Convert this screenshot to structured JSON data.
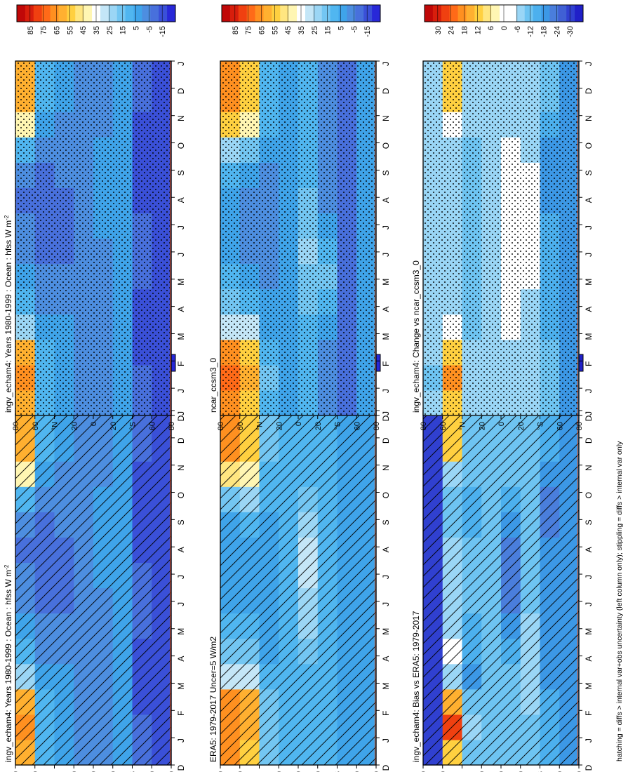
{
  "figure": {
    "footnote": "hatching = diffs > internal var+obs uncertainty (left column only); stippling = diffs > internal var only"
  },
  "x_axis_labels": [
    "D",
    "J",
    "F",
    "M",
    "A",
    "M",
    "J",
    "J",
    "A",
    "S",
    "O",
    "N",
    "D",
    "J"
  ],
  "lat_axis_labels": [
    "80",
    "60",
    "°N",
    "20",
    "0",
    "20",
    "°S",
    "60",
    "80"
  ],
  "colors": {
    "abs_scale": [
      "#2828d8",
      "#3a50d8",
      "#4870dc",
      "#4d8ee0",
      "#3fa4ea",
      "#50b6f0",
      "#73c6f2",
      "#9bd6f5",
      "#c4e6f7",
      "#ffffff",
      "#fff6b3",
      "#ffe680",
      "#ffd040",
      "#ffb030",
      "#ff9020",
      "#ff6a18",
      "#f04010",
      "#d81e0c",
      "#c00808"
    ],
    "diff_scale": [
      "#2020c8",
      "#3040d0",
      "#4060d4",
      "#4a7edc",
      "#3c98e6",
      "#4cb0ee",
      "#6ec4f2",
      "#9ad6f6",
      "#ffffff",
      "#ffffff",
      "#fff6b3",
      "#ffe680",
      "#ffd040",
      "#ffb030",
      "#ff9020",
      "#ff6a18",
      "#f04010",
      "#d81e0c",
      "#c00808"
    ],
    "bad_lat": "#e05018"
  },
  "chart_data": [
    {
      "id": "model_left",
      "type": "heatmap",
      "title": "ingv_echam4: Years 1980-1999 : Ocean : hfss W m",
      "title_sup": "-2",
      "months": [
        "D",
        "J",
        "F",
        "M",
        "A",
        "M",
        "J",
        "J",
        "A",
        "S",
        "O",
        "N",
        "D",
        "J"
      ],
      "lat_ticks": [
        "80",
        "60",
        "°N",
        "20",
        "0",
        "20",
        "°S",
        "60",
        "80"
      ],
      "colorbar": {
        "labels": [
          "85",
          "75",
          "65",
          "55",
          "45",
          "35",
          "25",
          "15",
          "5",
          "-5",
          "-15"
        ],
        "vmin": -20,
        "vmax": 90
      },
      "overlay": "hatching",
      "values": [
        [
          58,
          62,
          61,
          22,
          14,
          5,
          0,
          -2,
          -3,
          -2,
          12,
          40,
          60,
          58
        ],
        [
          12,
          14,
          11,
          4,
          1,
          -2,
          -5,
          -6,
          -5,
          -4,
          2,
          8,
          12,
          12
        ],
        [
          5,
          6,
          6,
          5,
          3,
          0,
          -3,
          -4,
          -4,
          -2,
          1,
          3,
          5,
          5
        ],
        [
          0,
          1,
          1,
          0,
          0,
          0,
          0,
          0,
          0,
          0,
          0,
          0,
          0,
          0
        ],
        [
          2,
          2,
          3,
          3,
          3,
          2,
          3,
          4,
          5,
          5,
          4,
          3,
          2,
          2
        ],
        [
          4,
          5,
          7,
          8,
          8,
          7,
          6,
          5,
          5,
          6,
          6,
          5,
          4,
          4
        ],
        [
          -8,
          -8,
          -10,
          -10,
          -9,
          -8,
          -8,
          -8,
          -10,
          -12,
          -12,
          -10,
          -8,
          -8
        ],
        [
          -12,
          -12,
          -13,
          -12,
          -11,
          -10,
          -10,
          -11,
          -13,
          -14,
          -13,
          -12,
          -12,
          -12
        ]
      ]
    },
    {
      "id": "model_right",
      "type": "heatmap",
      "title": "ingv_echam4: Years 1980-1999 : Ocean : hfss W m",
      "title_sup": "-2",
      "months": [
        "D",
        "J",
        "F",
        "M",
        "A",
        "M",
        "J",
        "J",
        "A",
        "S",
        "O",
        "N",
        "D",
        "J"
      ],
      "lat_ticks": [
        "80",
        "60",
        "°N",
        "20",
        "0",
        "20",
        "°S",
        "60",
        "80"
      ],
      "colorbar": {
        "labels": [
          "85",
          "75",
          "65",
          "55",
          "45",
          "35",
          "25",
          "15",
          "5",
          "-5",
          "-15"
        ],
        "vmin": -20,
        "vmax": 90
      },
      "overlay": "stippling",
      "values": [
        [
          58,
          62,
          61,
          22,
          14,
          5,
          0,
          -2,
          -3,
          -2,
          12,
          40,
          60,
          58
        ],
        [
          12,
          14,
          11,
          4,
          1,
          -2,
          -5,
          -6,
          -5,
          -4,
          2,
          8,
          12,
          12
        ],
        [
          5,
          6,
          6,
          5,
          3,
          0,
          -3,
          -4,
          -4,
          -2,
          1,
          3,
          5,
          5
        ],
        [
          0,
          1,
          1,
          0,
          0,
          0,
          0,
          0,
          0,
          0,
          0,
          0,
          0,
          0
        ],
        [
          2,
          2,
          3,
          3,
          3,
          2,
          3,
          4,
          5,
          5,
          4,
          3,
          2,
          2
        ],
        [
          4,
          5,
          7,
          8,
          8,
          7,
          6,
          5,
          5,
          6,
          6,
          5,
          4,
          4
        ],
        [
          -8,
          -8,
          -10,
          -10,
          -9,
          -8,
          -8,
          -8,
          -10,
          -12,
          -12,
          -10,
          -8,
          -8
        ],
        [
          -12,
          -12,
          -13,
          -12,
          -11,
          -10,
          -10,
          -11,
          -13,
          -14,
          -13,
          -12,
          -12,
          -12
        ]
      ]
    },
    {
      "id": "obs_left",
      "type": "heatmap",
      "title": "ERA5: 1979-2017 Uncer=5 W/m2",
      "title_sup": "",
      "months": [
        "D",
        "J",
        "F",
        "M",
        "A",
        "M",
        "J",
        "J",
        "A",
        "S",
        "O",
        "N",
        "D",
        "J"
      ],
      "lat_ticks": [
        "80",
        "60",
        "°N",
        "20",
        "0",
        "20",
        "°S",
        "60",
        "80"
      ],
      "colorbar": {
        "labels": [
          "85",
          "75",
          "65",
          "55",
          "45",
          "35",
          "25",
          "15",
          "5",
          "-5",
          "-15"
        ],
        "vmin": -20,
        "vmax": 90
      },
      "overlay": "hatching",
      "values": [
        [
          62,
          66,
          63,
          28,
          18,
          10,
          6,
          5,
          6,
          8,
          20,
          48,
          62,
          62
        ],
        [
          55,
          60,
          56,
          30,
          18,
          10,
          6,
          5,
          6,
          10,
          26,
          42,
          55,
          55
        ],
        [
          18,
          20,
          17,
          10,
          8,
          6,
          5,
          5,
          5,
          6,
          10,
          14,
          18,
          18
        ],
        [
          10,
          11,
          10,
          10,
          10,
          10,
          10,
          10,
          10,
          10,
          10,
          10,
          10,
          10
        ],
        [
          12,
          12,
          12,
          14,
          18,
          22,
          26,
          28,
          30,
          26,
          18,
          14,
          12,
          12
        ],
        [
          10,
          10,
          11,
          12,
          12,
          13,
          14,
          14,
          14,
          13,
          12,
          11,
          10,
          10
        ],
        [
          5,
          5,
          4,
          4,
          4,
          4,
          4,
          4,
          4,
          4,
          4,
          5,
          5,
          5
        ],
        [
          4,
          4,
          4,
          4,
          4,
          4,
          4,
          4,
          4,
          4,
          4,
          4,
          4,
          4
        ]
      ]
    },
    {
      "id": "ref_right",
      "type": "heatmap",
      "title": "ncar_ccsm3_0",
      "title_sup": "",
      "months": [
        "D",
        "J",
        "F",
        "M",
        "A",
        "M",
        "J",
        "J",
        "A",
        "S",
        "O",
        "N",
        "D",
        "J"
      ],
      "lat_ticks": [
        "80",
        "60",
        "°N",
        "20",
        "0",
        "20",
        "°S",
        "60",
        "80"
      ],
      "colorbar": {
        "labels": [
          "85",
          "75",
          "65",
          "55",
          "45",
          "35",
          "25",
          "15",
          "5",
          "-5",
          "-15"
        ],
        "vmin": -20,
        "vmax": 90
      },
      "overlay": "stippling",
      "values": [
        [
          64,
          68,
          64,
          30,
          18,
          10,
          6,
          5,
          6,
          10,
          22,
          50,
          64,
          64
        ],
        [
          50,
          56,
          50,
          28,
          14,
          6,
          2,
          0,
          2,
          6,
          18,
          38,
          50,
          50
        ],
        [
          14,
          15,
          12,
          8,
          5,
          3,
          1,
          1,
          1,
          2,
          6,
          10,
          14,
          14
        ],
        [
          6,
          7,
          7,
          7,
          7,
          7,
          7,
          7,
          7,
          7,
          7,
          7,
          6,
          6
        ],
        [
          10,
          10,
          11,
          14,
          18,
          20,
          22,
          20,
          16,
          12,
          10,
          10,
          10,
          10
        ],
        [
          0,
          0,
          2,
          6,
          12,
          18,
          10,
          4,
          2,
          2,
          1,
          0,
          0,
          0
        ],
        [
          -5,
          -5,
          -6,
          -6,
          -5,
          -4,
          -4,
          -4,
          -5,
          -6,
          -6,
          -5,
          -5,
          -5
        ],
        [
          5,
          5,
          5,
          5,
          5,
          5,
          5,
          5,
          5,
          5,
          5,
          5,
          5,
          5
        ]
      ]
    },
    {
      "id": "bias_left",
      "type": "heatmap",
      "title": "ingv_echam4: Bias vs ERA5: 1979-2017",
      "title_sup": "",
      "months": [
        "D",
        "J",
        "F",
        "M",
        "A",
        "M",
        "J",
        "J",
        "A",
        "S",
        "O",
        "N",
        "D",
        "J"
      ],
      "lat_ticks": [
        "80",
        "60",
        "°N",
        "20",
        "0",
        "20",
        "°S",
        "60",
        "80"
      ],
      "colorbar": {
        "labels": [
          "30",
          "24",
          "18",
          "12",
          "6",
          "0",
          "-6",
          "-12",
          "-18",
          "-24",
          "-30"
        ],
        "vmin": -33,
        "vmax": 33
      },
      "overlay": "hatching",
      "values": [
        [
          -28,
          -28,
          -28,
          -28,
          -28,
          -28,
          -28,
          -28,
          -28,
          -28,
          -28,
          -28,
          -28,
          -28
        ],
        [
          10,
          24,
          14,
          -8,
          -4,
          -6,
          -6,
          -7,
          -8,
          -12,
          -10,
          -8,
          10,
          10
        ],
        [
          -12,
          -8,
          -10,
          -16,
          -15,
          -13,
          -12,
          -12,
          -12,
          -13,
          -14,
          -12,
          -12,
          -12
        ],
        [
          -12,
          -12,
          -12,
          -12,
          -12,
          -12,
          -12,
          -12,
          -12,
          -12,
          -12,
          -12,
          -12,
          -12
        ],
        [
          -12,
          -12,
          -12,
          -12,
          -14,
          -18,
          -20,
          -22,
          -22,
          -18,
          -14,
          -12,
          -12,
          -12
        ],
        [
          -10,
          -10,
          -8,
          -8,
          -8,
          -8,
          -10,
          -10,
          -12,
          -12,
          -12,
          -10,
          -10,
          -10
        ],
        [
          -14,
          -14,
          -14,
          -16,
          -16,
          -16,
          -16,
          -16,
          -18,
          -20,
          -20,
          -18,
          -14,
          -14
        ],
        [
          -18,
          -18,
          -18,
          -18,
          -18,
          -18,
          -18,
          -18,
          -18,
          -18,
          -18,
          -18,
          -18,
          -18
        ]
      ]
    },
    {
      "id": "change_right",
      "type": "heatmap",
      "title": "ingv_echam4: Change vs ncar_ccsm3_0",
      "title_sup": "",
      "months": [
        "D",
        "J",
        "F",
        "M",
        "A",
        "M",
        "J",
        "J",
        "A",
        "S",
        "O",
        "N",
        "D",
        "J"
      ],
      "lat_ticks": [
        "80",
        "60",
        "°N",
        "20",
        "0",
        "20",
        "°S",
        "60",
        "80"
      ],
      "colorbar": {
        "labels": [
          "30",
          "24",
          "18",
          "12",
          "6",
          "0",
          "-6",
          "-12",
          "-18",
          "-24",
          "-30"
        ],
        "vmin": -33,
        "vmax": 33
      },
      "overlay": "stippling",
      "values": [
        [
          -8,
          -10,
          -8,
          -6,
          -6,
          -6,
          -6,
          -6,
          -6,
          -8,
          -8,
          -8,
          -8,
          -8
        ],
        [
          12,
          18,
          12,
          -4,
          -6,
          -8,
          -8,
          -8,
          -8,
          -8,
          -6,
          -2,
          12,
          12
        ],
        [
          -8,
          -6,
          -8,
          -10,
          -10,
          -10,
          -10,
          -10,
          -10,
          -10,
          -10,
          -8,
          -8,
          -8
        ],
        [
          -6,
          -6,
          -6,
          -6,
          -6,
          -6,
          -6,
          -6,
          -6,
          -6,
          -6,
          -6,
          -6,
          -6
        ],
        [
          -6,
          -6,
          -6,
          -4,
          -2,
          0,
          0,
          0,
          0,
          -2,
          -4,
          -6,
          -6,
          -6
        ],
        [
          -6,
          -6,
          -6,
          -6,
          -6,
          -4,
          -4,
          -4,
          -4,
          -4,
          -6,
          -6,
          -6,
          -6
        ],
        [
          -12,
          -12,
          -12,
          -14,
          -14,
          -14,
          -14,
          -14,
          -16,
          -16,
          -16,
          -14,
          -12,
          -12
        ],
        [
          -16,
          -16,
          -16,
          -16,
          -16,
          -16,
          -16,
          -16,
          -16,
          -16,
          -16,
          -16,
          -16,
          -16
        ]
      ]
    }
  ]
}
